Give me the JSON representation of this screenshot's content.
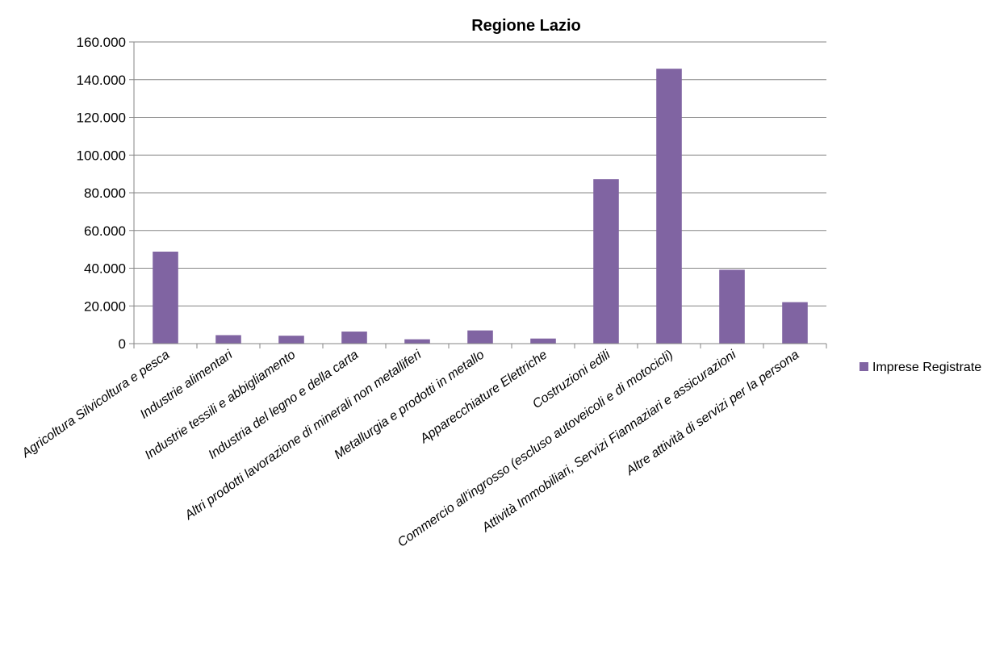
{
  "chart_data": {
    "type": "bar",
    "title": "Regione Lazio",
    "xlabel": "",
    "ylabel": "",
    "categories": [
      "Agricoltura Silvicoltura e pesca",
      "Industrie alimentari",
      "Industrie tessili e abbigliamento",
      "Industria del legno e della carta",
      "Altri prodotti lavorazione di minerali non metalliferi",
      "Metallurgia e prodotti in metallo",
      "Apparecchiature Elettriche",
      "Costruzioni edili",
      "Commercio all'ingrosso (escluso autoveicoli e di motocicli)",
      "Attività Immobiliari, Servizi Fiannaziari e assicurazioni",
      "Altre attività di servizi per la persona"
    ],
    "series": [
      {
        "name": "Imprese Registrate",
        "color": "#8064a2",
        "values": [
          48800,
          4500,
          4200,
          6400,
          2300,
          7000,
          2700,
          87200,
          145800,
          39200,
          22000
        ]
      }
    ],
    "ylim": [
      0,
      160000
    ],
    "yticks": [
      0,
      20000,
      40000,
      60000,
      80000,
      100000,
      120000,
      140000,
      160000
    ],
    "ytick_labels": [
      "0",
      "20.000",
      "40.000",
      "60.000",
      "80.000",
      "100.000",
      "120.000",
      "140.000",
      "160.000"
    ],
    "grid": true,
    "legend_position": "right"
  }
}
